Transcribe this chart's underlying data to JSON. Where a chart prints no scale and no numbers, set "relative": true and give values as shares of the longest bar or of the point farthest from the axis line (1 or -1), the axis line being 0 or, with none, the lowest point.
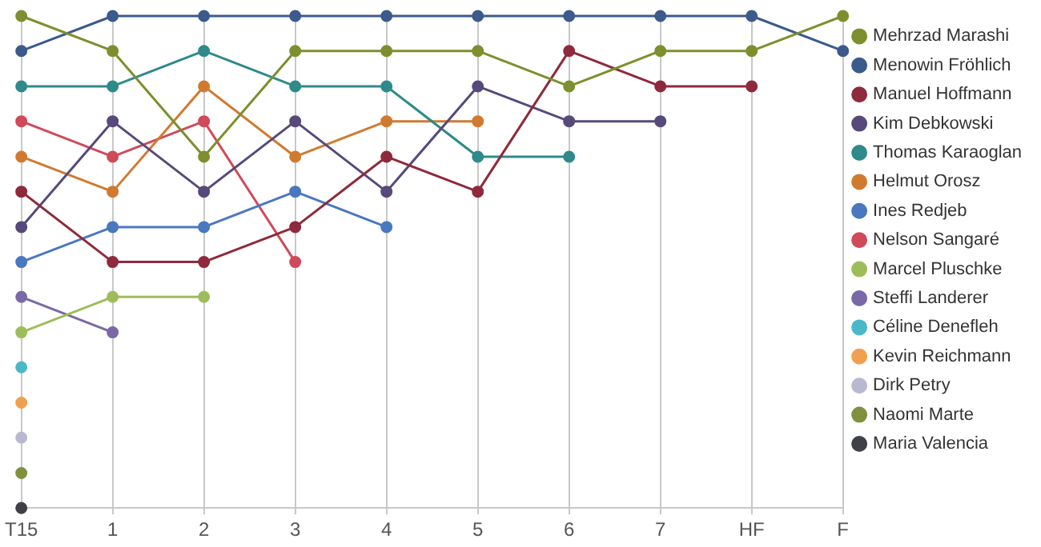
{
  "chart_data": {
    "type": "line",
    "relative": true,
    "legend": "right",
    "grid": "x",
    "marker": "circle",
    "line_style": "solid",
    "categories": [
      "T15",
      "1",
      "2",
      "3",
      "4",
      "5",
      "6",
      "7",
      "HF",
      "F"
    ],
    "series": [
      {
        "name": "Mehrzad Marashi",
        "color": "#7d8f2e",
        "values": [
          1,
          0.929,
          0.714,
          0.929,
          0.929,
          0.929,
          0.857,
          0.929,
          0.929,
          1
        ]
      },
      {
        "name": "Menowin Fröhlich",
        "color": "#3c5a8c",
        "values": [
          0.929,
          1,
          1,
          1,
          1,
          1,
          1,
          1,
          1,
          0.929
        ]
      },
      {
        "name": "Manuel Hoffmann",
        "color": "#8e2a3c",
        "values": [
          0.643,
          0.5,
          0.5,
          0.571,
          0.714,
          0.643,
          0.929,
          0.857,
          0.857,
          null
        ]
      },
      {
        "name": "Kim Debkowski",
        "color": "#574a7a",
        "values": [
          0.571,
          0.786,
          0.643,
          0.786,
          0.643,
          0.857,
          0.786,
          0.786,
          null,
          null
        ]
      },
      {
        "name": "Thomas Karaoglan",
        "color": "#2f8a8a",
        "values": [
          0.857,
          0.857,
          0.929,
          0.857,
          0.857,
          0.714,
          0.714,
          null,
          null,
          null
        ]
      },
      {
        "name": "Helmut Orosz",
        "color": "#d07a30",
        "values": [
          0.714,
          0.643,
          0.857,
          0.714,
          0.786,
          0.786,
          null,
          null,
          null,
          null
        ]
      },
      {
        "name": "Ines Redjeb",
        "color": "#4a78c0",
        "values": [
          0.5,
          0.571,
          0.571,
          0.643,
          0.571,
          null,
          null,
          null,
          null,
          null
        ]
      },
      {
        "name": "Nelson Sangaré",
        "color": "#d04a5a",
        "values": [
          0.786,
          0.714,
          0.786,
          0.5,
          null,
          null,
          null,
          null,
          null,
          null
        ]
      },
      {
        "name": "Marcel Pluschke",
        "color": "#9dbd5a",
        "values": [
          0.357,
          0.429,
          0.429,
          null,
          null,
          null,
          null,
          null,
          null,
          null
        ]
      },
      {
        "name": "Steffi Landerer",
        "color": "#7a68a8",
        "values": [
          0.429,
          0.357,
          null,
          null,
          null,
          null,
          null,
          null,
          null,
          null
        ]
      },
      {
        "name": "Céline Denefleh",
        "color": "#4ab8c8",
        "values": [
          0.286,
          null,
          null,
          null,
          null,
          null,
          null,
          null,
          null,
          null
        ]
      },
      {
        "name": "Kevin Reichmann",
        "color": "#f0a050",
        "values": [
          0.214,
          null,
          null,
          null,
          null,
          null,
          null,
          null,
          null,
          null
        ]
      },
      {
        "name": "Dirk Petry",
        "color": "#b8b8d0",
        "values": [
          0.143,
          null,
          null,
          null,
          null,
          null,
          null,
          null,
          null,
          null
        ]
      },
      {
        "name": "Naomi Marte",
        "color": "#7f9040",
        "values": [
          0.071,
          null,
          null,
          null,
          null,
          null,
          null,
          null,
          null,
          null
        ]
      },
      {
        "name": "Maria Valencia",
        "color": "#404048",
        "values": [
          0,
          null,
          null,
          null,
          null,
          null,
          null,
          null,
          null,
          null
        ]
      }
    ]
  }
}
